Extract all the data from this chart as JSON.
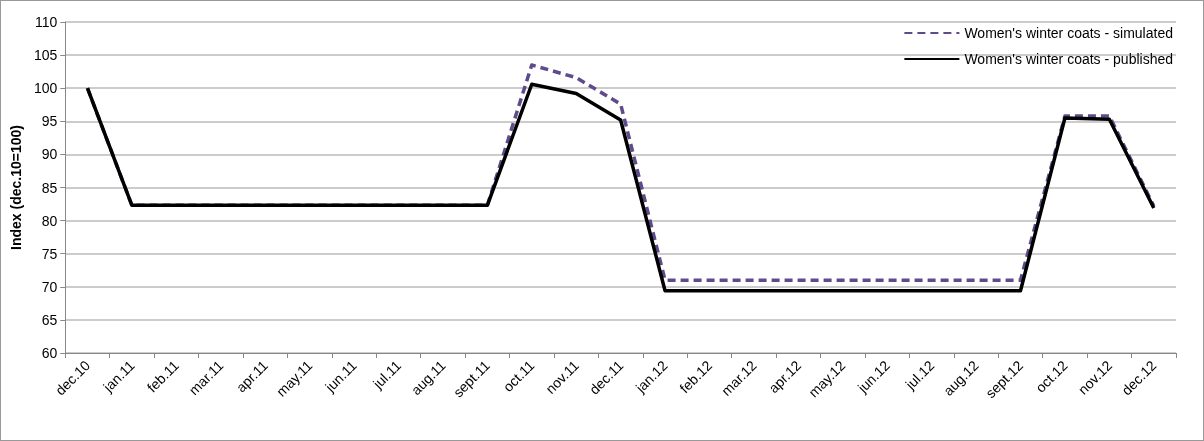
{
  "chart_data": {
    "type": "line",
    "ylabel": "Index (dec.10=100)",
    "categories": [
      "dec.10",
      "jan.11",
      "feb.11",
      "mar.11",
      "apr.11",
      "may.11",
      "jun.11",
      "jul.11",
      "aug.11",
      "sept.11",
      "oct.11",
      "nov.11",
      "dec.11",
      "jan.12",
      "feb.12",
      "mar.12",
      "apr.12",
      "may.12",
      "jun.12",
      "jul.12",
      "aug.12",
      "sept.12",
      "oct.12",
      "nov.12",
      "dec.12"
    ],
    "series": [
      {
        "name": "Women's winter coats - simulated",
        "color": "#5f4b8b",
        "line_style": "dashed",
        "values": [
          100,
          82.3,
          82.3,
          82.3,
          82.3,
          82.3,
          82.3,
          82.3,
          82.3,
          82.3,
          103.5,
          101.6,
          97.6,
          71.0,
          71.0,
          71.0,
          71.0,
          71.0,
          71.0,
          71.0,
          71.0,
          71.0,
          95.8,
          95.8,
          82.2
        ]
      },
      {
        "name": "Women's winter coats - published",
        "color": "#000000",
        "line_style": "solid",
        "values": [
          100,
          82.3,
          82.3,
          82.3,
          82.3,
          82.3,
          82.3,
          82.3,
          82.3,
          82.3,
          100.6,
          99.2,
          95.2,
          69.4,
          69.4,
          69.4,
          69.4,
          69.4,
          69.4,
          69.4,
          69.4,
          69.4,
          95.5,
          95.3,
          81.9
        ]
      }
    ],
    "ylim": [
      60,
      110
    ],
    "yticks": [
      60,
      65,
      70,
      75,
      80,
      85,
      90,
      95,
      100,
      105,
      110
    ],
    "grid": "y",
    "legend": "top right",
    "marker": "none"
  }
}
